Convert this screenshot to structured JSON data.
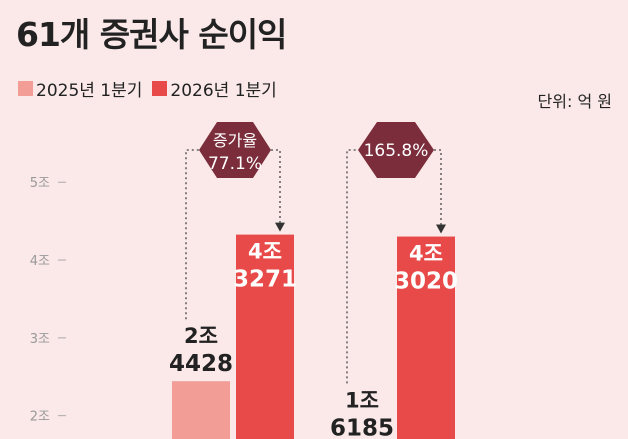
{
  "title": "61개 증권사 순이익",
  "unit_label": "단위: 억 원",
  "colors": {
    "2025": "#f29d95",
    "2026": "#e84a4a",
    "badge": "#7b2d3b",
    "background": "#fbe9e9"
  },
  "chart_data": {
    "type": "bar",
    "categories": [
      "",
      ""
    ],
    "series": [
      {
        "name": "2025년 1분기",
        "values": [
          24428,
          16185
        ],
        "labels": [
          [
            "2조",
            "4428"
          ],
          [
            "1조",
            "6185"
          ]
        ]
      },
      {
        "name": "2026년 1분기",
        "values": [
          43271,
          43020
        ],
        "labels": [
          [
            "4조",
            "3271"
          ],
          [
            "4조",
            "3020"
          ]
        ]
      }
    ],
    "yticks": [
      {
        "value": 20000,
        "label": "2조"
      },
      {
        "value": 30000,
        "label": "3조"
      },
      {
        "value": 40000,
        "label": "4조"
      },
      {
        "value": 50000,
        "label": "5조"
      }
    ],
    "ylim": [
      17000,
      58000
    ],
    "annotations": [
      {
        "group": 0,
        "lines": [
          "증가율",
          "77.1%"
        ]
      },
      {
        "group": 1,
        "lines": [
          "165.8%"
        ]
      }
    ]
  }
}
